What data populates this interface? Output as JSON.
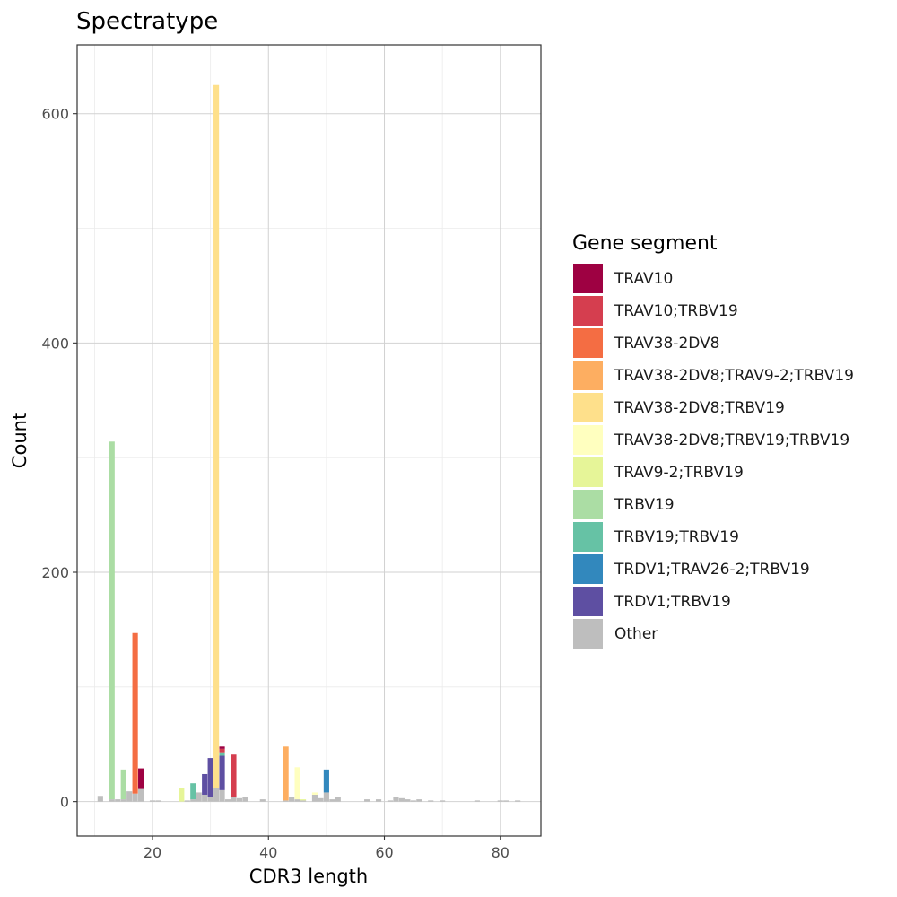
{
  "chart_data": {
    "type": "bar",
    "stacked": true,
    "title": "Spectratype",
    "xlabel": "CDR3 length",
    "ylabel": "Count",
    "xlim": [
      7,
      87
    ],
    "ylim": [
      -30,
      660
    ],
    "x_ticks": [
      20,
      40,
      60,
      80
    ],
    "y_ticks": [
      0,
      200,
      400,
      600
    ],
    "grid": true,
    "legend_title": "Gene segment",
    "legend_position": "right",
    "series": [
      {
        "name": "TRAV10",
        "color": "#9E0142",
        "points": [
          {
            "x": 18,
            "y": 18
          },
          {
            "x": 32,
            "y": 2
          }
        ]
      },
      {
        "name": "TRAV10;TRBV19",
        "color": "#D53E4F",
        "points": [
          {
            "x": 32,
            "y": 3
          },
          {
            "x": 34,
            "y": 37
          }
        ]
      },
      {
        "name": "TRAV38-2DV8",
        "color": "#F46D43",
        "points": [
          {
            "x": 17,
            "y": 140
          }
        ]
      },
      {
        "name": "TRAV38-2DV8;TRAV9-2;TRBV19",
        "color": "#FDAE61",
        "points": [
          {
            "x": 43,
            "y": 47
          }
        ]
      },
      {
        "name": "TRAV38-2DV8;TRBV19",
        "color": "#FEE08B",
        "points": [
          {
            "x": 31,
            "y": 613
          }
        ]
      },
      {
        "name": "TRAV38-2DV8;TRBV19;TRBV19",
        "color": "#FFFFBF",
        "points": [
          {
            "x": 45,
            "y": 28
          },
          {
            "x": 48,
            "y": 2
          }
        ]
      },
      {
        "name": "TRAV9-2;TRBV19",
        "color": "#E6F598",
        "points": [
          {
            "x": 25,
            "y": 12
          },
          {
            "x": 46,
            "y": 1
          }
        ]
      },
      {
        "name": "TRBV19",
        "color": "#ABDDA4",
        "points": [
          {
            "x": 13,
            "y": 312
          },
          {
            "x": 15,
            "y": 26
          }
        ]
      },
      {
        "name": "TRBV19;TRBV19",
        "color": "#66C2A5",
        "points": [
          {
            "x": 27,
            "y": 14
          },
          {
            "x": 32,
            "y": 3
          }
        ]
      },
      {
        "name": "TRDV1;TRAV26-2;TRBV19",
        "color": "#3288BD",
        "points": [
          {
            "x": 50,
            "y": 20
          }
        ]
      },
      {
        "name": "TRDV1;TRBV19",
        "color": "#5E4FA2",
        "points": [
          {
            "x": 29,
            "y": 18
          },
          {
            "x": 30,
            "y": 34
          },
          {
            "x": 32,
            "y": 30
          }
        ]
      },
      {
        "name": "Other",
        "color": "#BEBEBE",
        "points": [
          {
            "x": 11,
            "y": 5
          },
          {
            "x": 13,
            "y": 2
          },
          {
            "x": 14,
            "y": 2
          },
          {
            "x": 15,
            "y": 2
          },
          {
            "x": 16,
            "y": 9
          },
          {
            "x": 17,
            "y": 7
          },
          {
            "x": 18,
            "y": 11
          },
          {
            "x": 20,
            "y": 1
          },
          {
            "x": 21,
            "y": 1
          },
          {
            "x": 26,
            "y": 1
          },
          {
            "x": 27,
            "y": 2
          },
          {
            "x": 28,
            "y": 8
          },
          {
            "x": 29,
            "y": 6
          },
          {
            "x": 30,
            "y": 4
          },
          {
            "x": 31,
            "y": 12
          },
          {
            "x": 32,
            "y": 10
          },
          {
            "x": 33,
            "y": 2
          },
          {
            "x": 34,
            "y": 4
          },
          {
            "x": 35,
            "y": 3
          },
          {
            "x": 36,
            "y": 4
          },
          {
            "x": 39,
            "y": 2
          },
          {
            "x": 43,
            "y": 1
          },
          {
            "x": 44,
            "y": 4
          },
          {
            "x": 45,
            "y": 2
          },
          {
            "x": 46,
            "y": 1
          },
          {
            "x": 48,
            "y": 6
          },
          {
            "x": 49,
            "y": 3
          },
          {
            "x": 50,
            "y": 8
          },
          {
            "x": 51,
            "y": 2
          },
          {
            "x": 52,
            "y": 4
          },
          {
            "x": 57,
            "y": 2
          },
          {
            "x": 59,
            "y": 2
          },
          {
            "x": 61,
            "y": 1
          },
          {
            "x": 62,
            "y": 4
          },
          {
            "x": 63,
            "y": 3
          },
          {
            "x": 64,
            "y": 2
          },
          {
            "x": 65,
            "y": 1
          },
          {
            "x": 66,
            "y": 2
          },
          {
            "x": 68,
            "y": 1
          },
          {
            "x": 70,
            "y": 1
          },
          {
            "x": 76,
            "y": 1
          },
          {
            "x": 80,
            "y": 1
          },
          {
            "x": 81,
            "y": 1
          },
          {
            "x": 83,
            "y": 1
          }
        ]
      }
    ]
  }
}
